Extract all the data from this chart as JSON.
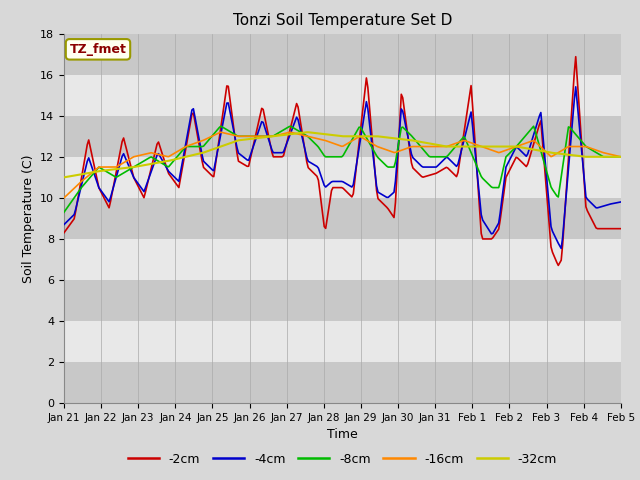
{
  "title": "Tonzi Soil Temperature Set D",
  "xlabel": "Time",
  "ylabel": "Soil Temperature (C)",
  "ylim": [
    0,
    18
  ],
  "yticks": [
    0,
    2,
    4,
    6,
    8,
    10,
    12,
    14,
    16,
    18
  ],
  "annotation_text": "TZ_fmet",
  "annotation_color": "#8B0000",
  "annotation_bg": "#FFFFF0",
  "bg_color": "#D8D8D8",
  "band_dark": "#C8C8C8",
  "band_light": "#E8E8E8",
  "series_colors": [
    "#CC0000",
    "#0000CC",
    "#00BB00",
    "#FF8800",
    "#CCCC00"
  ],
  "series_labels": [
    "-2cm",
    "-4cm",
    "-8cm",
    "-16cm",
    "-32cm"
  ],
  "x_tick_labels": [
    "Jan 21",
    "Jan 22",
    "Jan 23",
    "Jan 24",
    "Jan 25",
    "Jan 26",
    "Jan 27",
    "Jan 28",
    "Jan 29",
    "Jan 30",
    "Jan 31",
    "Feb 1",
    "Feb 2",
    "Feb 3",
    "Feb 4",
    "Feb 5"
  ],
  "n_days": 16,
  "pts_per_day": 24
}
